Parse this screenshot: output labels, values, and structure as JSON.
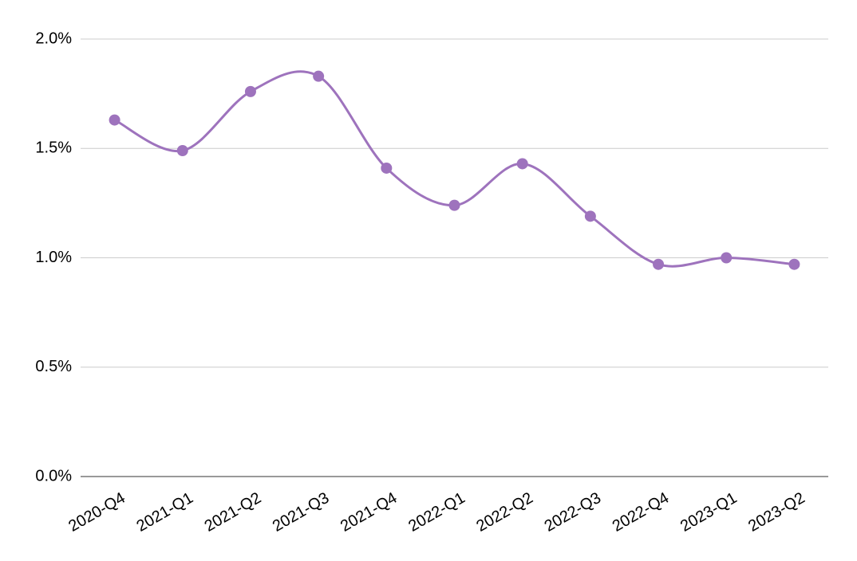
{
  "chart_data": {
    "type": "line",
    "categories": [
      "2020-Q4",
      "2021-Q1",
      "2021-Q2",
      "2021-Q3",
      "2021-Q4",
      "2022-Q1",
      "2022-Q2",
      "2022-Q3",
      "2022-Q4",
      "2023-Q1",
      "2023-Q2"
    ],
    "values": [
      1.63,
      1.49,
      1.76,
      1.83,
      1.41,
      1.24,
      1.43,
      1.19,
      0.97,
      1.0,
      0.97
    ],
    "color": "#9e73bd",
    "smooth": true,
    "ylim": [
      0,
      2.0
    ],
    "yticks": [
      {
        "value": 0,
        "label": "0.0%"
      },
      {
        "value": 0.5,
        "label": "0.5%"
      },
      {
        "value": 1.0,
        "label": "1.0%"
      },
      {
        "value": 1.5,
        "label": "1.5%"
      },
      {
        "value": 2.0,
        "label": "2.0%"
      }
    ],
    "grid": true
  }
}
